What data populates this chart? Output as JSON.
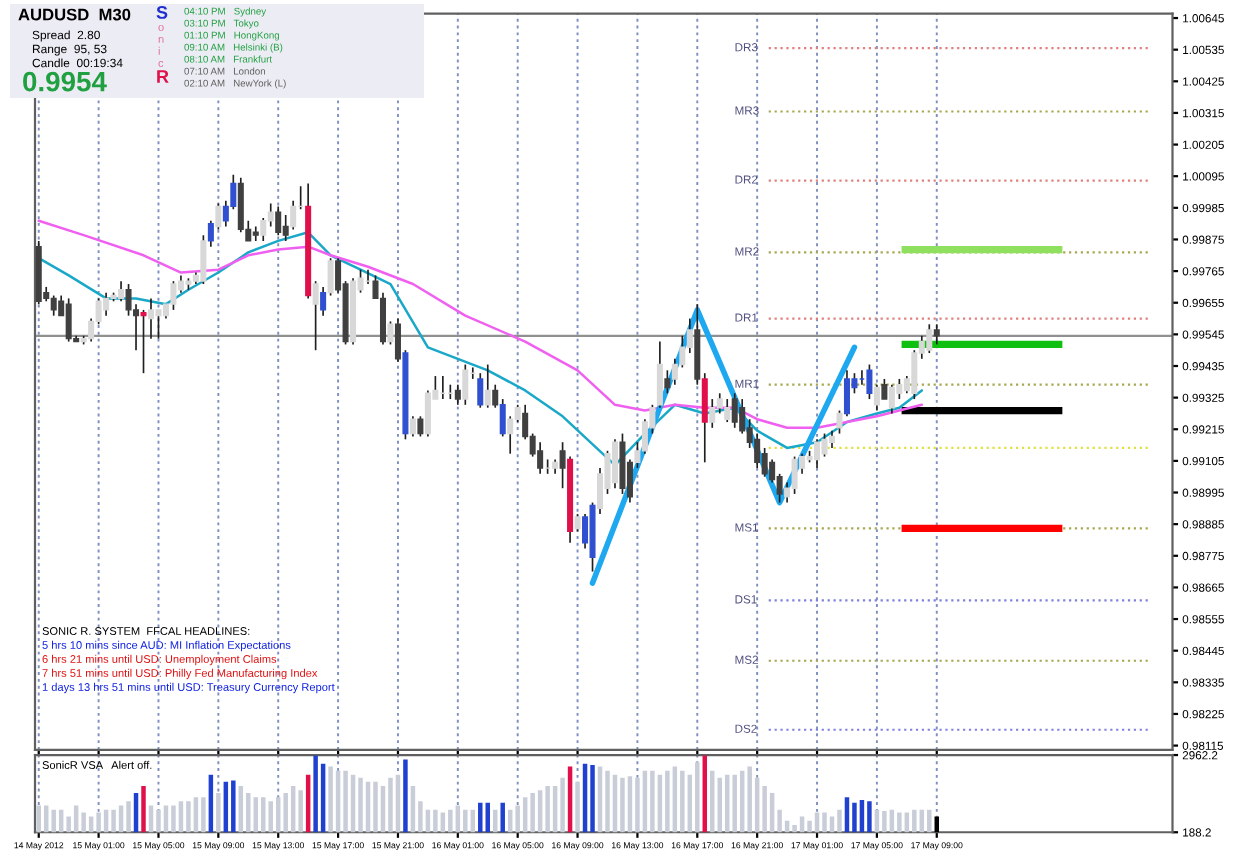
{
  "chart_data": [
    {
      "type": "candlestick",
      "tick_labels": "y",
      "grid": "x",
      "x": [
        "2012-05-14T21:00",
        "2012-05-14T21:30",
        "2012-05-14T22:00",
        "2012-05-14T22:30",
        "2012-05-14T23:00",
        "2012-05-14T23:30",
        "2012-05-15T00:00",
        "2012-05-15T00:30",
        "2012-05-15T01:00",
        "2012-05-15T01:30",
        "2012-05-15T02:00",
        "2012-05-15T02:30",
        "2012-05-15T03:00",
        "2012-05-15T03:30",
        "2012-05-15T04:00",
        "2012-05-15T04:30",
        "2012-05-15T05:00",
        "2012-05-15T05:30",
        "2012-05-15T06:00",
        "2012-05-15T06:30",
        "2012-05-15T07:00",
        "2012-05-15T07:30",
        "2012-05-15T08:00",
        "2012-05-15T08:30",
        "2012-05-15T09:00",
        "2012-05-15T09:30",
        "2012-05-15T10:00",
        "2012-05-15T10:30",
        "2012-05-15T11:00",
        "2012-05-15T11:30",
        "2012-05-15T12:00",
        "2012-05-15T12:30",
        "2012-05-15T13:00",
        "2012-05-15T13:30",
        "2012-05-15T14:00",
        "2012-05-15T14:30",
        "2012-05-15T15:00",
        "2012-05-15T15:30",
        "2012-05-15T16:00",
        "2012-05-15T16:30",
        "2012-05-15T17:00",
        "2012-05-15T17:30",
        "2012-05-15T18:00",
        "2012-05-15T18:30",
        "2012-05-15T19:00",
        "2012-05-15T19:30",
        "2012-05-15T20:00",
        "2012-05-15T20:30",
        "2012-05-15T21:00",
        "2012-05-15T21:30",
        "2012-05-15T22:00",
        "2012-05-15T22:30",
        "2012-05-15T23:00",
        "2012-05-15T23:30",
        "2012-05-16T00:00",
        "2012-05-16T00:30",
        "2012-05-16T01:00",
        "2012-05-16T01:30",
        "2012-05-16T02:00",
        "2012-05-16T02:30",
        "2012-05-16T03:00",
        "2012-05-16T03:30",
        "2012-05-16T04:00",
        "2012-05-16T04:30",
        "2012-05-16T05:00",
        "2012-05-16T05:30",
        "2012-05-16T06:00",
        "2012-05-16T06:30",
        "2012-05-16T07:00",
        "2012-05-16T07:30",
        "2012-05-16T08:00",
        "2012-05-16T08:30",
        "2012-05-16T09:00",
        "2012-05-16T09:30",
        "2012-05-16T10:00",
        "2012-05-16T10:30",
        "2012-05-16T11:00",
        "2012-05-16T11:30",
        "2012-05-16T12:00",
        "2012-05-16T12:30",
        "2012-05-16T13:00",
        "2012-05-16T13:30",
        "2012-05-16T14:00",
        "2012-05-16T14:30",
        "2012-05-16T15:00",
        "2012-05-16T15:30",
        "2012-05-16T16:00",
        "2012-05-16T16:30",
        "2012-05-16T17:00",
        "2012-05-16T17:30",
        "2012-05-16T18:00",
        "2012-05-16T18:30",
        "2012-05-16T19:00",
        "2012-05-16T19:30",
        "2012-05-16T20:00",
        "2012-05-16T20:30",
        "2012-05-16T21:00",
        "2012-05-16T21:30",
        "2012-05-16T22:00",
        "2012-05-16T22:30",
        "2012-05-16T23:00",
        "2012-05-16T23:30",
        "2012-05-17T00:00",
        "2012-05-17T00:30",
        "2012-05-17T01:00",
        "2012-05-17T01:30",
        "2012-05-17T02:00",
        "2012-05-17T02:30",
        "2012-05-17T03:00",
        "2012-05-17T03:30",
        "2012-05-17T04:00",
        "2012-05-17T04:30",
        "2012-05-17T05:00",
        "2012-05-17T05:30",
        "2012-05-17T06:00",
        "2012-05-17T06:30",
        "2012-05-17T07:00",
        "2012-05-17T07:30",
        "2012-05-17T08:00",
        "2012-05-17T08:30",
        "2012-05-17T09:00"
      ],
      "ohlc": [
        [
          0.9985,
          0.9987,
          0.9965,
          0.9966
        ],
        [
          0.9969,
          0.9971,
          0.9966,
          0.9967
        ],
        [
          0.9967,
          0.9968,
          0.9961,
          0.9963
        ],
        [
          0.9966,
          0.9968,
          0.9961,
          0.9961
        ],
        [
          0.9965,
          0.9967,
          0.9952,
          0.9953
        ],
        [
          0.9953,
          0.9954,
          0.9952,
          0.9952
        ],
        [
          0.9952,
          0.9954,
          0.9951,
          0.9953
        ],
        [
          0.9953,
          0.996,
          0.9952,
          0.9959
        ],
        [
          0.9959,
          0.9967,
          0.9958,
          0.9966
        ],
        [
          0.9963,
          0.9969,
          0.9961,
          0.9967
        ],
        [
          0.9967,
          0.9969,
          0.9966,
          0.9968
        ],
        [
          0.9967,
          0.9973,
          0.9966,
          0.997
        ],
        [
          0.997,
          0.9972,
          0.9961,
          0.9963
        ],
        [
          0.9963,
          0.9965,
          0.9949,
          0.9961
        ],
        [
          0.9962,
          0.9963,
          0.9941,
          0.9961
        ],
        [
          0.996,
          0.9967,
          0.9953,
          0.9963
        ],
        [
          0.9961,
          0.9963,
          0.9953,
          0.9963
        ],
        [
          0.9961,
          0.9965,
          0.996,
          0.9965
        ],
        [
          0.9965,
          0.9973,
          0.9963,
          0.9972
        ],
        [
          0.997,
          0.9975,
          0.9969,
          0.9973
        ],
        [
          0.9972,
          0.9974,
          0.997,
          0.9973
        ],
        [
          0.9973,
          0.9976,
          0.9972,
          0.9975
        ],
        [
          0.9973,
          0.9989,
          0.9972,
          0.9987
        ],
        [
          0.9987,
          0.9994,
          0.9985,
          0.9993
        ],
        [
          0.9992,
          1.0,
          0.9991,
          0.9999
        ],
        [
          0.9994,
          1.0001,
          0.9992,
          0.9999
        ],
        [
          0.9999,
          1.001,
          0.9998,
          1.0007
        ],
        [
          1.0007,
          1.0009,
          0.999,
          0.9991
        ],
        [
          0.9991,
          0.9994,
          0.9987,
          0.9987
        ],
        [
          0.999,
          0.9992,
          0.9987,
          0.9989
        ],
        [
          0.9989,
          0.9995,
          0.9987,
          0.9994
        ],
        [
          0.9994,
          1.0,
          0.9992,
          0.9997
        ],
        [
          0.9997,
          0.9999,
          0.9989,
          0.999
        ],
        [
          0.9992,
          0.9996,
          0.9987,
          0.9989
        ],
        [
          0.9992,
          1.0001,
          0.9991,
          0.9999
        ],
        [
          0.9999,
          1.0006,
          0.9998,
          0.9999
        ],
        [
          0.9999,
          1.0007,
          0.9967,
          0.9968
        ],
        [
          0.9965,
          0.9973,
          0.9949,
          0.9972
        ],
        [
          0.9969,
          0.9971,
          0.9961,
          0.9963
        ],
        [
          0.9969,
          0.9981,
          0.9968,
          0.998
        ],
        [
          0.998,
          0.9981,
          0.9969,
          0.997
        ],
        [
          0.9972,
          0.9973,
          0.9951,
          0.9952
        ],
        [
          0.9952,
          0.9974,
          0.9951,
          0.9973
        ],
        [
          0.997,
          0.9977,
          0.9969,
          0.9974
        ],
        [
          0.9973,
          0.9977,
          0.9972,
          0.9973
        ],
        [
          0.9973,
          0.9975,
          0.9967,
          0.9967
        ],
        [
          0.9967,
          0.9969,
          0.9951,
          0.9952
        ],
        [
          0.9952,
          0.9959,
          0.9951,
          0.9958
        ],
        [
          0.9958,
          0.996,
          0.9945,
          0.9946
        ],
        [
          0.9948,
          0.9949,
          0.9918,
          0.992
        ],
        [
          0.992,
          0.9926,
          0.9919,
          0.9925
        ],
        [
          0.9925,
          0.9926,
          0.9919,
          0.992
        ],
        [
          0.992,
          0.9935,
          0.9919,
          0.9934
        ],
        [
          0.9932,
          0.994,
          0.9932,
          0.9935
        ],
        [
          0.9934,
          0.994,
          0.9932,
          0.9934
        ],
        [
          0.9934,
          0.9937,
          0.9932,
          0.9934
        ],
        [
          0.9935,
          0.9937,
          0.993,
          0.9932
        ],
        [
          0.9932,
          0.9944,
          0.993,
          0.9942
        ],
        [
          0.9941,
          0.9943,
          0.9939,
          0.9941
        ],
        [
          0.9939,
          0.9941,
          0.9929,
          0.993
        ],
        [
          0.993,
          0.9944,
          0.9929,
          0.9935
        ],
        [
          0.9935,
          0.9937,
          0.9929,
          0.993
        ],
        [
          0.993,
          0.9932,
          0.9919,
          0.992
        ],
        [
          0.992,
          0.9926,
          0.9913,
          0.9925
        ],
        [
          0.9925,
          0.993,
          0.9924,
          0.9929
        ],
        [
          0.9927,
          0.993,
          0.9918,
          0.9919
        ],
        [
          0.9919,
          0.992,
          0.9912,
          0.9913
        ],
        [
          0.9914,
          0.9917,
          0.9906,
          0.9908
        ],
        [
          0.9908,
          0.9911,
          0.9906,
          0.9908
        ],
        [
          0.9908,
          0.9911,
          0.9906,
          0.991
        ],
        [
          0.9914,
          0.9917,
          0.9901,
          0.9908
        ],
        [
          0.9911,
          0.9912,
          0.9882,
          0.9886
        ],
        [
          0.9887,
          0.9892,
          0.9886,
          0.9891
        ],
        [
          0.9891,
          0.9892,
          0.988,
          0.9882
        ],
        [
          0.9877,
          0.9896,
          0.9872,
          0.9895
        ],
        [
          0.9894,
          0.9908,
          0.9892,
          0.9906
        ],
        [
          0.9901,
          0.9914,
          0.9899,
          0.9913
        ],
        [
          0.9903,
          0.9918,
          0.9901,
          0.9917
        ],
        [
          0.9917,
          0.992,
          0.9899,
          0.9901
        ],
        [
          0.991,
          0.9911,
          0.9896,
          0.9898
        ],
        [
          0.991,
          0.9917,
          0.9908,
          0.9914
        ],
        [
          0.9914,
          0.9925,
          0.9913,
          0.9924
        ],
        [
          0.9922,
          0.993,
          0.992,
          0.9929
        ],
        [
          0.993,
          0.9952,
          0.9929,
          0.9944
        ],
        [
          0.9939,
          0.9942,
          0.9934,
          0.9936
        ],
        [
          0.9939,
          0.9946,
          0.9937,
          0.9944
        ],
        [
          0.9944,
          0.9954,
          0.9943,
          0.995
        ],
        [
          0.995,
          0.996,
          0.9948,
          0.9956
        ],
        [
          0.9956,
          0.9965,
          0.9937,
          0.9939
        ],
        [
          0.9939,
          0.9941,
          0.991,
          0.9924
        ],
        [
          0.9924,
          0.9932,
          0.9922,
          0.9929
        ],
        [
          0.9929,
          0.9934,
          0.9927,
          0.9932
        ],
        [
          0.9925,
          0.9932,
          0.9924,
          0.9929
        ],
        [
          0.9932,
          0.9934,
          0.9922,
          0.9924
        ],
        [
          0.9929,
          0.9932,
          0.992,
          0.9921
        ],
        [
          0.9922,
          0.9925,
          0.9915,
          0.9917
        ],
        [
          0.9918,
          0.992,
          0.9908,
          0.991
        ],
        [
          0.9913,
          0.9915,
          0.9905,
          0.9906
        ],
        [
          0.991,
          0.9911,
          0.9903,
          0.9904
        ],
        [
          0.9905,
          0.9906,
          0.9896,
          0.9899
        ],
        [
          0.9898,
          0.9903,
          0.9896,
          0.9901
        ],
        [
          0.9901,
          0.9912,
          0.9899,
          0.9911
        ],
        [
          0.9908,
          0.9913,
          0.9906,
          0.9912
        ],
        [
          0.9911,
          0.9914,
          0.991,
          0.9912
        ],
        [
          0.9911,
          0.9918,
          0.9908,
          0.9917
        ],
        [
          0.9913,
          0.992,
          0.9912,
          0.9918
        ],
        [
          0.9917,
          0.9921,
          0.9915,
          0.9919
        ],
        [
          0.9922,
          0.9928,
          0.992,
          0.9927
        ],
        [
          0.9927,
          0.9942,
          0.9926,
          0.9939
        ],
        [
          0.9936,
          0.9941,
          0.9934,
          0.9939
        ],
        [
          0.9939,
          0.9942,
          0.9937,
          0.9939
        ],
        [
          0.9942,
          0.9944,
          0.9932,
          0.9934
        ],
        [
          0.993,
          0.9937,
          0.9928,
          0.9936
        ],
        [
          0.9937,
          0.9939,
          0.9932,
          0.9932
        ],
        [
          0.9929,
          0.9937,
          0.9927,
          0.9936
        ],
        [
          0.9934,
          0.9939,
          0.9932,
          0.9937
        ],
        [
          0.9935,
          0.994,
          0.9934,
          0.9939
        ],
        [
          0.9934,
          0.9949,
          0.9932,
          0.9948
        ],
        [
          0.9948,
          0.9954,
          0.9946,
          0.9952
        ],
        [
          0.9949,
          0.9958,
          0.9948,
          0.9956
        ],
        [
          0.9956,
          0.9958,
          0.9951,
          0.9954
        ]
      ],
      "colors": [
        "#404040",
        "#404040",
        "#404040",
        "#404040",
        "#404040",
        "#404040",
        "#d8d8d8",
        "#d8d8d8",
        "#d8d8d8",
        "#d8d8d8",
        "#d8d8d8",
        "#d8d8d8",
        "#404040",
        "#404040",
        "#e0104a",
        "#d8d8d8",
        "#d8d8d8",
        "#d8d8d8",
        "#d8d8d8",
        "#d8d8d8",
        "#d8d8d8",
        "#d8d8d8",
        "#d8d8d8",
        "#3050d0",
        "#d8d8d8",
        "#3050d0",
        "#3050d0",
        "#404040",
        "#404040",
        "#404040",
        "#d8d8d8",
        "#d8d8d8",
        "#404040",
        "#404040",
        "#d8d8d8",
        "#d8d8d8",
        "#e0104a",
        "#d8d8d8",
        "#3050d0",
        "#d8d8d8",
        "#404040",
        "#404040",
        "#d8d8d8",
        "#d8d8d8",
        "#d8d8d8",
        "#404040",
        "#404040",
        "#d8d8d8",
        "#404040",
        "#3050d0",
        "#d8d8d8",
        "#404040",
        "#d8d8d8",
        "#d8d8d8",
        "#d8d8d8",
        "#d8d8d8",
        "#404040",
        "#d8d8d8",
        "#d8d8d8",
        "#3050d0",
        "#d8d8d8",
        "#404040",
        "#3050d0",
        "#d8d8d8",
        "#d8d8d8",
        "#404040",
        "#404040",
        "#404040",
        "#d8d8d8",
        "#d8d8d8",
        "#404040",
        "#e0104a",
        "#d8d8d8",
        "#3050d0",
        "#3050d0",
        "#d8d8d8",
        "#d8d8d8",
        "#d8d8d8",
        "#404040",
        "#404040",
        "#d8d8d8",
        "#d8d8d8",
        "#d8d8d8",
        "#d8d8d8",
        "#404040",
        "#d8d8d8",
        "#d8d8d8",
        "#d8d8d8",
        "#404040",
        "#e0104a",
        "#d8d8d8",
        "#d8d8d8",
        "#d8d8d8",
        "#404040",
        "#404040",
        "#404040",
        "#404040",
        "#404040",
        "#404040",
        "#404040",
        "#d8d8d8",
        "#d8d8d8",
        "#d8d8d8",
        "#d8d8d8",
        "#d8d8d8",
        "#d8d8d8",
        "#d8d8d8",
        "#d8d8d8",
        "#3050d0",
        "#3050d0",
        "#3050d0",
        "#3050d0",
        "#d8d8d8",
        "#404040",
        "#d8d8d8",
        "#d8d8d8",
        "#d8d8d8",
        "#d8d8d8",
        "#d8d8d8",
        "#d8d8d8",
        "#404040"
      ],
      "series": [
        {
          "type": "line",
          "color": "#1aa8c8",
          "x": [
            "2012-05-14T21:00",
            "2012-05-14T23:00",
            "2012-05-15T01:30",
            "2012-05-15T03:30",
            "2012-05-15T05:30",
            "2012-05-15T07:00",
            "2012-05-15T09:00",
            "2012-05-15T11:00",
            "2012-05-15T13:00",
            "2012-05-15T15:00",
            "2012-05-15T16:30",
            "2012-05-15T18:30",
            "2012-05-15T20:30",
            "2012-05-15T23:00",
            "2012-05-16T03:00",
            "2012-05-16T05:30",
            "2012-05-16T08:00",
            "2012-05-16T11:30",
            "2012-05-16T13:30",
            "2012-05-16T15:30",
            "2012-05-16T17:30",
            "2012-05-16T19:30",
            "2012-05-16T21:00",
            "2012-05-16T23:00",
            "2012-05-17T01:00",
            "2012-05-17T03:00",
            "2012-05-17T05:00",
            "2012-05-17T06:30",
            "2012-05-17T08:00"
          ],
          "values": [
            0.9981,
            0.9975,
            0.9967,
            0.9967,
            0.9965,
            0.997,
            0.9976,
            0.9983,
            0.9987,
            0.999,
            0.9982,
            0.9977,
            0.9972,
            0.995,
            0.9942,
            0.9935,
            0.9926,
            0.9909,
            0.992,
            0.993,
            0.9927,
            0.9929,
            0.9921,
            0.9915,
            0.9917,
            0.9924,
            0.9927,
            0.9929,
            0.9935
          ]
        },
        {
          "type": "line",
          "color": "#f060f0",
          "x": [
            "2012-05-14T21:00",
            "2012-05-15T00:00",
            "2012-05-15T04:00",
            "2012-05-15T06:30",
            "2012-05-15T09:00",
            "2012-05-15T11:00",
            "2012-05-15T13:00",
            "2012-05-15T15:00",
            "2012-05-15T16:30",
            "2012-05-15T19:00",
            "2012-05-15T22:00",
            "2012-05-16T01:30",
            "2012-05-16T05:30",
            "2012-05-16T09:00",
            "2012-05-16T11:30",
            "2012-05-16T13:30",
            "2012-05-16T15:30",
            "2012-05-16T17:30",
            "2012-05-16T19:30",
            "2012-05-16T21:00",
            "2012-05-16T23:00",
            "2012-05-17T01:00",
            "2012-05-17T03:00",
            "2012-05-17T05:00",
            "2012-05-17T06:30",
            "2012-05-17T08:00"
          ],
          "values": [
            0.9994,
            0.9989,
            0.9982,
            0.9976,
            0.9977,
            0.9982,
            0.9984,
            0.9985,
            0.9982,
            0.9978,
            0.9972,
            0.9961,
            0.9952,
            0.9942,
            0.993,
            0.9928,
            0.993,
            0.9929,
            0.9929,
            0.9925,
            0.9922,
            0.9922,
            0.9924,
            0.9926,
            0.9928,
            0.993
          ]
        },
        {
          "type": "line",
          "color": "#1ea8f0",
          "x": [
            "2012-05-16T10:00",
            "2012-05-16T17:00",
            "2012-05-16T22:30",
            "2012-05-17T03:30"
          ],
          "values": [
            0.9868,
            0.9963,
            0.9896,
            0.995
          ]
        }
      ],
      "ref_lines": [
        {
          "axis": "y",
          "value": 0.9954,
          "color": "#909090",
          "line_style": "solid"
        },
        {
          "axis": "y",
          "value": 1.0054,
          "label": "DR3",
          "color": "#e08080",
          "line_style": "dotted"
        },
        {
          "axis": "y",
          "value": 1.0032,
          "label": "MR3",
          "color": "#a8a850",
          "line_style": "dotted"
        },
        {
          "axis": "y",
          "value": 1.0008,
          "label": "DR2",
          "color": "#e08080",
          "line_style": "dotted"
        },
        {
          "axis": "y",
          "value": 0.9983,
          "label": "MR2",
          "color": "#a8a850",
          "line_style": "dotted"
        },
        {
          "axis": "y",
          "value": 0.996,
          "label": "DR1",
          "color": "#e08080",
          "line_style": "dotted"
        },
        {
          "axis": "y",
          "value": 0.9937,
          "label": "MR1",
          "color": "#a8a850",
          "line_style": "dotted"
        },
        {
          "axis": "y",
          "value": 0.9915,
          "color": "#e0e040",
          "line_style": "dotted"
        },
        {
          "axis": "y",
          "value": 0.9887,
          "label": "MS1",
          "color": "#a8a850",
          "line_style": "dotted"
        },
        {
          "axis": "y",
          "value": 0.9862,
          "label": "DS1",
          "color": "#8080e0",
          "line_style": "dotted"
        },
        {
          "axis": "y",
          "value": 0.9841,
          "label": "MS2",
          "color": "#a8a850",
          "line_style": "dotted"
        },
        {
          "axis": "y",
          "value": 0.9817,
          "label": "DS2",
          "color": "#8080e0",
          "line_style": "dotted"
        },
        {
          "axis": "y",
          "value": 0.9984,
          "color": "#90e060",
          "line_style": "solid"
        },
        {
          "axis": "y",
          "value": 0.9951,
          "color": "#10c010",
          "line_style": "solid"
        },
        {
          "axis": "y",
          "value": 0.9928,
          "color": "#000000",
          "line_style": "solid"
        },
        {
          "axis": "y",
          "value": 0.9887,
          "color": "#ff0000",
          "line_style": "solid"
        }
      ],
      "xlim": [
        "2012-05-14T20:45",
        "2012-05-18T00:45"
      ],
      "xticks": [
        "2012-05-14T21:00",
        "2012-05-15T01:00",
        "2012-05-15T05:00",
        "2012-05-15T09:00",
        "2012-05-15T13:00",
        "2012-05-15T17:00",
        "2012-05-15T21:00",
        "2012-05-16T01:00",
        "2012-05-16T05:00",
        "2012-05-16T09:00",
        "2012-05-16T13:00",
        "2012-05-16T17:00",
        "2012-05-16T21:00",
        "2012-05-17T01:00",
        "2012-05-17T05:00",
        "2012-05-17T09:00"
      ],
      "ylim": [
        0.981,
        1.0066
      ],
      "yticks": [
        1.00645,
        1.00535,
        1.00425,
        1.00315,
        1.00205,
        1.00095,
        0.99985,
        0.99875,
        0.99765,
        0.99655,
        0.99545,
        0.99435,
        0.99325,
        0.99215,
        0.99105,
        0.98995,
        0.98885,
        0.98775,
        0.98665,
        0.98555,
        0.98445,
        0.98335,
        0.98225,
        0.98115
      ],
      "annotations": [
        "AUDUSD  M30",
        "Spread  2.80",
        "Range  95, 53",
        "Candle  00:19:34",
        "0.9954",
        "S",
        "o",
        "n",
        "i",
        "c",
        "R",
        "04:10 PM   Sydney",
        "03:10 PM   Tokyo",
        "01:10 PM   HongKong",
        "09:10 AM   Helsinki (B)",
        "08:10 AM   Frankfurt",
        "07:10 AM   London",
        "02:10 AM   NewYork (L)",
        "SONIC R. SYSTEM  FFCAL HEADLINES:",
        "5 hrs 10 mins since AUD: MI Inflation Expectations",
        "6 hrs 21 mins until USD: Unemployment Claims",
        "7 hrs 51 mins until USD: Philly Fed Manufacturing Index",
        "1 days 13 hrs 51 mins until USD: Treasury Currency Report"
      ]
    },
    {
      "type": "bar",
      "grid": "x",
      "x": [
        "2012-05-14T21:00",
        "2012-05-14T21:30",
        "2012-05-14T22:00",
        "2012-05-14T22:30",
        "2012-05-14T23:00",
        "2012-05-14T23:30",
        "2012-05-15T00:00",
        "2012-05-15T00:30",
        "2012-05-15T01:00",
        "2012-05-15T01:30",
        "2012-05-15T02:00",
        "2012-05-15T02:30",
        "2012-05-15T03:00",
        "2012-05-15T03:30",
        "2012-05-15T04:00",
        "2012-05-15T04:30",
        "2012-05-15T05:00",
        "2012-05-15T05:30",
        "2012-05-15T06:00",
        "2012-05-15T06:30",
        "2012-05-15T07:00",
        "2012-05-15T07:30",
        "2012-05-15T08:00",
        "2012-05-15T08:30",
        "2012-05-15T09:00",
        "2012-05-15T09:30",
        "2012-05-15T10:00",
        "2012-05-15T10:30",
        "2012-05-15T11:00",
        "2012-05-15T11:30",
        "2012-05-15T12:00",
        "2012-05-15T12:30",
        "2012-05-15T13:00",
        "2012-05-15T13:30",
        "2012-05-15T14:00",
        "2012-05-15T14:30",
        "2012-05-15T15:00",
        "2012-05-15T15:30",
        "2012-05-15T16:00",
        "2012-05-15T16:30",
        "2012-05-15T17:00",
        "2012-05-15T17:30",
        "2012-05-15T18:00",
        "2012-05-15T18:30",
        "2012-05-15T19:00",
        "2012-05-15T19:30",
        "2012-05-15T20:00",
        "2012-05-15T20:30",
        "2012-05-15T21:00",
        "2012-05-15T21:30",
        "2012-05-15T22:00",
        "2012-05-15T22:30",
        "2012-05-15T23:00",
        "2012-05-15T23:30",
        "2012-05-16T00:00",
        "2012-05-16T00:30",
        "2012-05-16T01:00",
        "2012-05-16T01:30",
        "2012-05-16T02:00",
        "2012-05-16T02:30",
        "2012-05-16T03:00",
        "2012-05-16T03:30",
        "2012-05-16T04:00",
        "2012-05-16T04:30",
        "2012-05-16T05:00",
        "2012-05-16T05:30",
        "2012-05-16T06:00",
        "2012-05-16T06:30",
        "2012-05-16T07:00",
        "2012-05-16T07:30",
        "2012-05-16T08:00",
        "2012-05-16T08:30",
        "2012-05-16T09:00",
        "2012-05-16T09:30",
        "2012-05-16T10:00",
        "2012-05-16T10:30",
        "2012-05-16T11:00",
        "2012-05-16T11:30",
        "2012-05-16T12:00",
        "2012-05-16T12:30",
        "2012-05-16T13:00",
        "2012-05-16T13:30",
        "2012-05-16T14:00",
        "2012-05-16T14:30",
        "2012-05-16T15:00",
        "2012-05-16T15:30",
        "2012-05-16T16:00",
        "2012-05-16T16:30",
        "2012-05-16T17:00",
        "2012-05-16T17:30",
        "2012-05-16T18:00",
        "2012-05-16T18:30",
        "2012-05-16T19:00",
        "2012-05-16T19:30",
        "2012-05-16T20:00",
        "2012-05-16T20:30",
        "2012-05-16T21:00",
        "2012-05-16T21:30",
        "2012-05-16T22:00",
        "2012-05-16T22:30",
        "2012-05-16T23:00",
        "2012-05-16T23:30",
        "2012-05-17T00:00",
        "2012-05-17T00:30",
        "2012-05-17T01:00",
        "2012-05-17T01:30",
        "2012-05-17T02:00",
        "2012-05-17T02:30",
        "2012-05-17T03:00",
        "2012-05-17T03:30",
        "2012-05-17T04:00",
        "2012-05-17T04:30",
        "2012-05-17T05:00",
        "2012-05-17T05:30",
        "2012-05-17T06:00",
        "2012-05-17T06:30",
        "2012-05-17T07:00",
        "2012-05-17T07:30",
        "2012-05-17T08:00",
        "2012-05-17T08:30",
        "2012-05-17T09:00"
      ],
      "values": [
        1150,
        1150,
        1000,
        1000,
        750,
        1150,
        900,
        750,
        900,
        1000,
        1000,
        1150,
        1300,
        1600,
        1850,
        1150,
        1000,
        1150,
        1150,
        1300,
        1300,
        1450,
        1450,
        2250,
        1600,
        2000,
        2050,
        1850,
        1600,
        1450,
        1450,
        1300,
        1450,
        1600,
        1850,
        1700,
        2250,
        2950,
        2650,
        2550,
        2400,
        2400,
        2250,
        2150,
        2000,
        2000,
        1850,
        2150,
        2250,
        2800,
        1850,
        1300,
        1000,
        1000,
        900,
        1000,
        1150,
        1000,
        1000,
        1250,
        1250,
        1000,
        1250,
        1000,
        1150,
        1450,
        1600,
        1700,
        1850,
        1850,
        2150,
        2550,
        2000,
        2650,
        2600,
        2550,
        2400,
        2250,
        2150,
        2200,
        2150,
        2400,
        2400,
        2250,
        2400,
        2550,
        2400,
        2250,
        2700,
        2950,
        2400,
        2150,
        2250,
        2250,
        2400,
        2550,
        2150,
        1850,
        1600,
        1000,
        600,
        450,
        750,
        600,
        900,
        900,
        750,
        1000,
        1450,
        1250,
        1350,
        1300,
        1000,
        950,
        1000,
        900,
        900,
        1000,
        1000,
        1000,
        750
      ],
      "colors": [
        "#c8cdd8",
        "#c8cdd8",
        "#c8cdd8",
        "#c8cdd8",
        "#c8cdd8",
        "#c8cdd8",
        "#c8cdd8",
        "#c8cdd8",
        "#c8cdd8",
        "#c8cdd8",
        "#c8cdd8",
        "#c8cdd8",
        "#c8cdd8",
        "#2040d0",
        "#e0104a",
        "#c8cdd8",
        "#c8cdd8",
        "#c8cdd8",
        "#c8cdd8",
        "#c8cdd8",
        "#c8cdd8",
        "#c8cdd8",
        "#c8cdd8",
        "#2040d0",
        "#c8cdd8",
        "#2040d0",
        "#2040d0",
        "#c8cdd8",
        "#c8cdd8",
        "#c8cdd8",
        "#c8cdd8",
        "#c8cdd8",
        "#c8cdd8",
        "#c8cdd8",
        "#c8cdd8",
        "#c8cdd8",
        "#e0104a",
        "#2040d0",
        "#2040d0",
        "#c8cdd8",
        "#c8cdd8",
        "#c8cdd8",
        "#c8cdd8",
        "#c8cdd8",
        "#c8cdd8",
        "#c8cdd8",
        "#c8cdd8",
        "#c8cdd8",
        "#c8cdd8",
        "#2040d0",
        "#c8cdd8",
        "#c8cdd8",
        "#c8cdd8",
        "#c8cdd8",
        "#c8cdd8",
        "#c8cdd8",
        "#c8cdd8",
        "#c8cdd8",
        "#c8cdd8",
        "#2040d0",
        "#2040d0",
        "#c8cdd8",
        "#2040d0",
        "#c8cdd8",
        "#c8cdd8",
        "#c8cdd8",
        "#c8cdd8",
        "#c8cdd8",
        "#c8cdd8",
        "#c8cdd8",
        "#c8cdd8",
        "#e0104a",
        "#c8cdd8",
        "#2040d0",
        "#2040d0",
        "#c8cdd8",
        "#c8cdd8",
        "#c8cdd8",
        "#c8cdd8",
        "#c8cdd8",
        "#c8cdd8",
        "#c8cdd8",
        "#c8cdd8",
        "#c8cdd8",
        "#c8cdd8",
        "#c8cdd8",
        "#c8cdd8",
        "#c8cdd8",
        "#c8cdd8",
        "#e0104a",
        "#c8cdd8",
        "#c8cdd8",
        "#c8cdd8",
        "#c8cdd8",
        "#c8cdd8",
        "#c8cdd8",
        "#c8cdd8",
        "#c8cdd8",
        "#c8cdd8",
        "#c8cdd8",
        "#c8cdd8",
        "#c8cdd8",
        "#c8cdd8",
        "#c8cdd8",
        "#c8cdd8",
        "#c8cdd8",
        "#c8cdd8",
        "#c8cdd8",
        "#2040d0",
        "#2040d0",
        "#2040d0",
        "#2040d0",
        "#c8cdd8",
        "#c8cdd8",
        "#c8cdd8",
        "#c8cdd8",
        "#c8cdd8",
        "#c8cdd8",
        "#c8cdd8",
        "#c8cdd8",
        "#000000"
      ],
      "xlim": [
        "2012-05-14T20:45",
        "2012-05-18T00:45"
      ],
      "ylim": [
        188.2,
        2962.2
      ],
      "yticks": [
        188.2,
        2962.2
      ],
      "xticks": [
        {
          "value": "2012-05-14T21:00",
          "label": "14 May 2012"
        },
        {
          "value": "2012-05-15T01:00",
          "label": "15 May 01:00"
        },
        {
          "value": "2012-05-15T05:00",
          "label": "15 May 05:00"
        },
        {
          "value": "2012-05-15T09:00",
          "label": "15 May 09:00"
        },
        {
          "value": "2012-05-15T13:00",
          "label": "15 May 13:00"
        },
        {
          "value": "2012-05-15T17:00",
          "label": "15 May 17:00"
        },
        {
          "value": "2012-05-15T21:00",
          "label": "15 May 21:00"
        },
        {
          "value": "2012-05-16T01:00",
          "label": "16 May 01:00"
        },
        {
          "value": "2012-05-16T05:00",
          "label": "16 May 05:00"
        },
        {
          "value": "2012-05-16T09:00",
          "label": "16 May 09:00"
        },
        {
          "value": "2012-05-16T13:00",
          "label": "16 May 13:00"
        },
        {
          "value": "2012-05-16T17:00",
          "label": "16 May 17:00"
        },
        {
          "value": "2012-05-16T21:00",
          "label": "16 May 21:00"
        },
        {
          "value": "2012-05-17T01:00",
          "label": "17 May 01:00"
        },
        {
          "value": "2012-05-17T05:00",
          "label": "17 May 05:00"
        },
        {
          "value": "2012-05-17T09:00",
          "label": "17 May 09:00"
        }
      ],
      "annotations": [
        "SonicR VSA   Alert off."
      ]
    }
  ]
}
